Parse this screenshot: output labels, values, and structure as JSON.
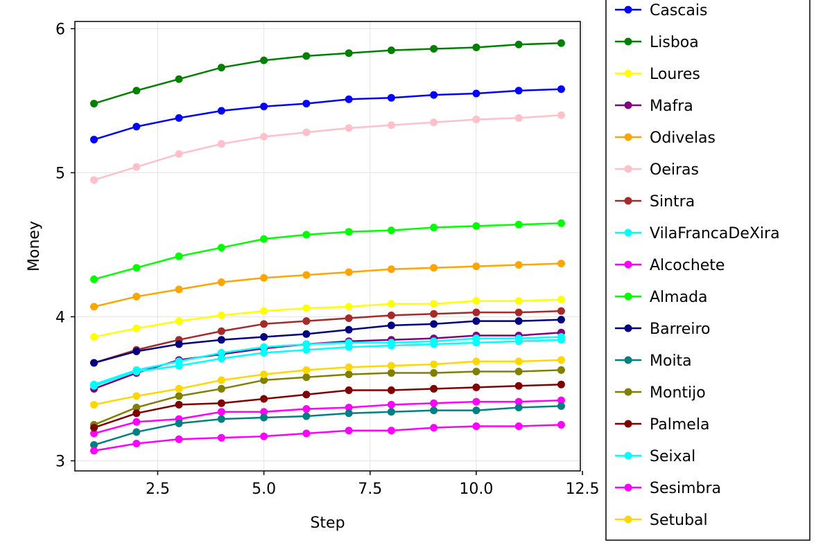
{
  "chart_data": {
    "type": "line",
    "xlabel": "Step",
    "ylabel": "Money",
    "xlim": [
      0.55,
      12.45
    ],
    "ylim": [
      2.93,
      6.05
    ],
    "xticks": [
      2.5,
      5.0,
      7.5,
      10.0,
      12.5
    ],
    "xtick_labels": [
      "2.5",
      "5.0",
      "7.5",
      "10.0",
      "12.5"
    ],
    "yticks": [
      3,
      4,
      5,
      6
    ],
    "ytick_labels": [
      "3",
      "4",
      "5",
      "6"
    ],
    "grid": true,
    "legend_position": "right",
    "x": [
      1,
      2,
      3,
      4,
      5,
      6,
      7,
      8,
      9,
      10,
      11,
      12
    ],
    "series": [
      {
        "name": "Cascais",
        "color": "#0000ff",
        "values": [
          5.23,
          5.32,
          5.38,
          5.43,
          5.46,
          5.48,
          5.51,
          5.52,
          5.54,
          5.55,
          5.57,
          5.58
        ]
      },
      {
        "name": "Lisboa",
        "color": "#008000",
        "values": [
          5.48,
          5.57,
          5.65,
          5.73,
          5.78,
          5.81,
          5.83,
          5.85,
          5.86,
          5.87,
          5.89,
          5.9
        ]
      },
      {
        "name": "Loures",
        "color": "#ffff00",
        "values": [
          3.86,
          3.92,
          3.97,
          4.01,
          4.04,
          4.06,
          4.07,
          4.09,
          4.09,
          4.11,
          4.11,
          4.12
        ]
      },
      {
        "name": "Mafra",
        "color": "#800080",
        "values": [
          3.5,
          3.61,
          3.7,
          3.74,
          3.78,
          3.81,
          3.83,
          3.84,
          3.85,
          3.87,
          3.87,
          3.89
        ]
      },
      {
        "name": "Odivelas",
        "color": "#ffa500",
        "values": [
          4.07,
          4.14,
          4.19,
          4.24,
          4.27,
          4.29,
          4.31,
          4.33,
          4.34,
          4.35,
          4.36,
          4.37
        ]
      },
      {
        "name": "Oeiras",
        "color": "#ffc0cb",
        "values": [
          4.95,
          5.04,
          5.13,
          5.2,
          5.25,
          5.28,
          5.31,
          5.33,
          5.35,
          5.37,
          5.38,
          5.4
        ]
      },
      {
        "name": "Sintra",
        "color": "#a52a2a",
        "values": [
          3.68,
          3.77,
          3.84,
          3.9,
          3.95,
          3.97,
          3.99,
          4.01,
          4.02,
          4.03,
          4.03,
          4.04
        ]
      },
      {
        "name": "VilaFrancaDeXira",
        "color": "#00ffff",
        "values": [
          3.53,
          3.63,
          3.69,
          3.75,
          3.79,
          3.81,
          3.82,
          3.82,
          3.83,
          3.85,
          3.85,
          3.86
        ]
      },
      {
        "name": "Alcochete",
        "color": "#ff00ff",
        "values": [
          3.19,
          3.27,
          3.29,
          3.34,
          3.34,
          3.36,
          3.37,
          3.39,
          3.4,
          3.41,
          3.41,
          3.42
        ]
      },
      {
        "name": "Almada",
        "color": "#00ff00",
        "values": [
          4.26,
          4.34,
          4.42,
          4.48,
          4.54,
          4.57,
          4.59,
          4.6,
          4.62,
          4.63,
          4.64,
          4.65
        ]
      },
      {
        "name": "Barreiro",
        "color": "#000080",
        "values": [
          3.68,
          3.76,
          3.81,
          3.84,
          3.86,
          3.88,
          3.91,
          3.94,
          3.95,
          3.97,
          3.97,
          3.98
        ]
      },
      {
        "name": "Moita",
        "color": "#008080",
        "values": [
          3.11,
          3.2,
          3.26,
          3.29,
          3.3,
          3.31,
          3.33,
          3.34,
          3.35,
          3.35,
          3.37,
          3.38
        ]
      },
      {
        "name": "Montijo",
        "color": "#808000",
        "values": [
          3.25,
          3.37,
          3.45,
          3.5,
          3.56,
          3.58,
          3.6,
          3.61,
          3.61,
          3.62,
          3.62,
          3.63
        ]
      },
      {
        "name": "Palmela",
        "color": "#800000",
        "values": [
          3.23,
          3.33,
          3.39,
          3.4,
          3.43,
          3.46,
          3.49,
          3.49,
          3.5,
          3.51,
          3.52,
          3.53
        ]
      },
      {
        "name": "Seixal",
        "color": "#00ffff",
        "values": [
          3.52,
          3.62,
          3.66,
          3.71,
          3.75,
          3.77,
          3.79,
          3.8,
          3.81,
          3.82,
          3.83,
          3.84
        ]
      },
      {
        "name": "Sesimbra",
        "color": "#ff00ff",
        "values": [
          3.07,
          3.12,
          3.15,
          3.16,
          3.17,
          3.19,
          3.21,
          3.21,
          3.23,
          3.24,
          3.24,
          3.25
        ]
      },
      {
        "name": "Setubal",
        "color": "#ffd700",
        "values": [
          3.39,
          3.45,
          3.5,
          3.56,
          3.6,
          3.63,
          3.65,
          3.66,
          3.67,
          3.69,
          3.69,
          3.7
        ]
      }
    ]
  }
}
